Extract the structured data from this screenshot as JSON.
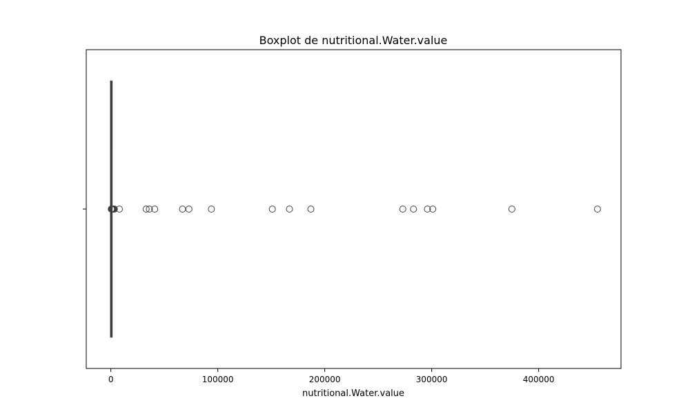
{
  "chart_data": {
    "type": "box",
    "orientation": "horizontal",
    "title": "Boxplot de nutritional.Water.value",
    "xlabel": "nutritional.Water.value",
    "ylabel": "",
    "xlim": [
      -23000,
      477000
    ],
    "xticks": [
      0,
      100000,
      200000,
      300000,
      400000
    ],
    "xtick_labels": [
      "0",
      "100000",
      "200000",
      "300000",
      "400000"
    ],
    "box": {
      "min": 0,
      "q1": 60,
      "median": 80,
      "q3": 95,
      "max": 150
    },
    "outliers": [
      400,
      700,
      1000,
      1400,
      1800,
      2300,
      2800,
      3300,
      8000,
      33000,
      36000,
      41000,
      67000,
      73000,
      94000,
      151000,
      167000,
      187000,
      273000,
      283000,
      296000,
      301000,
      375000,
      455000
    ],
    "grid": false,
    "legend": false,
    "colors": {
      "line": "#3f3f3f",
      "box_fill": "#4c72b0",
      "outlier_edge": "#3f3f3f",
      "frame": "#000000"
    }
  }
}
